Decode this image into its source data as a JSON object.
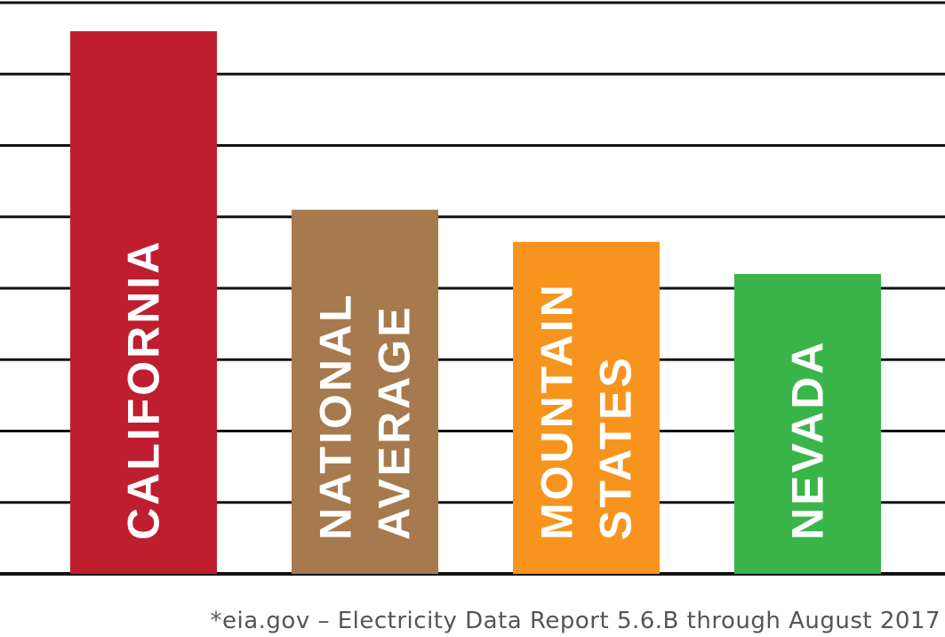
{
  "chart_data": {
    "type": "bar",
    "categories": [
      "CALIFORNIA",
      "NATIONAL AVERAGE",
      "MOUNTAIN STATES",
      "NEVADA"
    ],
    "category_lines": [
      [
        "CALIFORNIA"
      ],
      [
        "NATIONAL",
        "AVERAGE"
      ],
      [
        "MOUNTAIN",
        "STATES"
      ],
      [
        "NEVADA"
      ]
    ],
    "values": [
      7.6,
      5.1,
      4.65,
      4.2
    ],
    "colors": [
      "#be1e2d",
      "#a67a4e",
      "#f7941d",
      "#39b54a"
    ],
    "ylim": [
      0,
      8
    ],
    "gridlines": 8,
    "grid": true,
    "title": "",
    "xlabel": "",
    "ylabel": "",
    "footnote": "*eia.gov – Electricity Data Report 5.6.B through August 2017"
  }
}
